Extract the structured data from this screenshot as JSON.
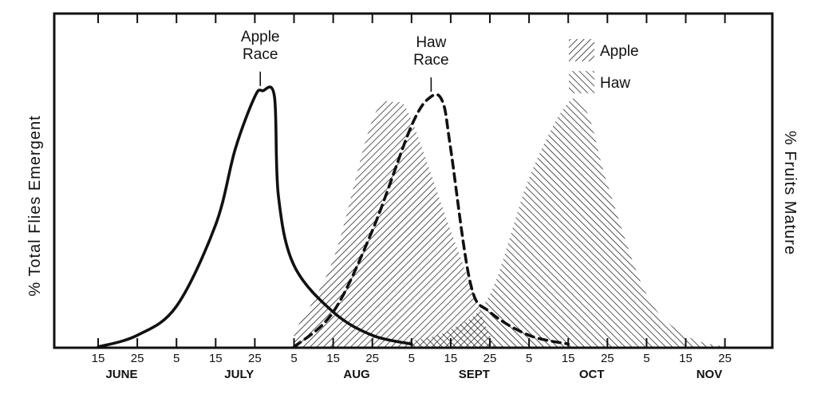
{
  "chart_data": {
    "type": "area",
    "title": "",
    "left_axis_label": "% Total Flies Emergent",
    "right_axis_label": "% Fruits Mature",
    "x_tick_days": [
      "15",
      "25",
      "5",
      "15",
      "25",
      "5",
      "15",
      "25",
      "5",
      "15",
      "25",
      "5",
      "15",
      "25",
      "5",
      "15",
      "25"
    ],
    "months": [
      "JUNE",
      "JULY",
      "AUG",
      "SEPT",
      "OCT",
      "NOV"
    ],
    "legend": [
      {
        "name": "Apple",
        "pattern": "hatch-forward"
      },
      {
        "name": "Haw",
        "pattern": "hatch-back"
      }
    ],
    "fly_series": [
      {
        "name": "Apple Race",
        "label": [
          "Apple",
          "Race"
        ],
        "style": "solid",
        "points": [
          [
            "Jun 15",
            0
          ],
          [
            "Jun 25",
            4
          ],
          [
            "Jul 5",
            14
          ],
          [
            "Jul 15",
            42
          ],
          [
            "Jul 20",
            68
          ],
          [
            "Jul 25",
            86
          ],
          [
            "Jul 27",
            88
          ],
          [
            "Jul 30",
            86
          ],
          [
            "Aug 1",
            52
          ],
          [
            "Aug 5",
            28
          ],
          [
            "Aug 15",
            12
          ],
          [
            "Aug 25",
            4
          ],
          [
            "Sep 5",
            1
          ]
        ]
      },
      {
        "name": "Haw Race",
        "label": [
          "Haw",
          "Race"
        ],
        "style": "dashed",
        "points": [
          [
            "Aug 5",
            0
          ],
          [
            "Aug 15",
            12
          ],
          [
            "Aug 25",
            40
          ],
          [
            "Sep 5",
            76
          ],
          [
            "Sep 10",
            86
          ],
          [
            "Sep 13",
            84
          ],
          [
            "Sep 15",
            68
          ],
          [
            "Sep 20",
            22
          ],
          [
            "Sep 25",
            12
          ],
          [
            "Oct 5",
            4
          ],
          [
            "Oct 15",
            1
          ]
        ]
      }
    ],
    "fruit_series": [
      {
        "name": "Apple",
        "points": [
          [
            "Aug 5",
            5
          ],
          [
            "Aug 15",
            30
          ],
          [
            "Aug 25",
            78
          ],
          [
            "Sep 1",
            84
          ],
          [
            "Sep 5",
            78
          ],
          [
            "Sep 15",
            40
          ],
          [
            "Sep 25",
            4
          ],
          [
            "Sep 28",
            0
          ]
        ]
      },
      {
        "name": "Haw",
        "points": [
          [
            "Sep 5",
            2
          ],
          [
            "Sep 15",
            6
          ],
          [
            "Sep 25",
            18
          ],
          [
            "Oct 5",
            58
          ],
          [
            "Oct 15",
            84
          ],
          [
            "Oct 20",
            80
          ],
          [
            "Oct 25",
            56
          ],
          [
            "Nov 5",
            18
          ],
          [
            "Nov 15",
            4
          ],
          [
            "Nov 25",
            0
          ]
        ]
      }
    ],
    "ylim": [
      0,
      100
    ],
    "grid": false
  }
}
